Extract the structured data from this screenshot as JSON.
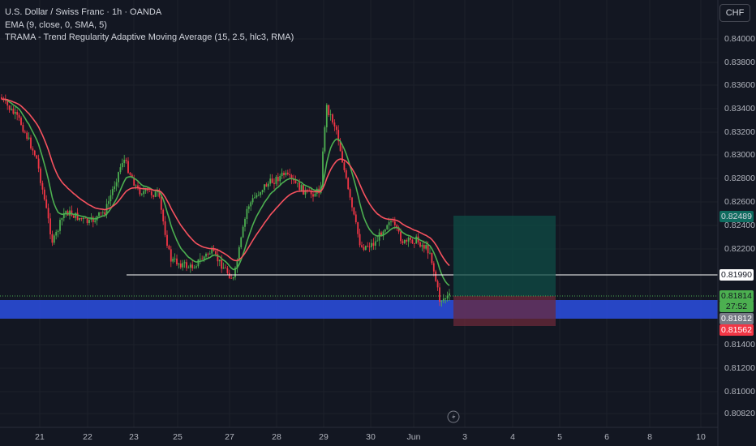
{
  "legend": {
    "title": "U.S. Dollar / Swiss Franc · 1h · OANDA",
    "ema": "EMA (9, close, 0, SMA, 5)",
    "trama": "TRAMA - Trend Regularity Adaptive Moving Average (15, 2.5, hlc3, RMA)"
  },
  "currency_button": "CHF",
  "colors": {
    "background": "#131722",
    "up": "#4caf50",
    "down": "#f23645",
    "trama": "#f7525f",
    "ema": "#4caf50",
    "zone": "#2a4bd7",
    "target": "#0f4c46",
    "stop": "#6b2a3a"
  },
  "price_tags": {
    "target": "0.82489",
    "level": "0.81990",
    "current": "0.81814",
    "countdown": "27:52",
    "entry": "0.81812",
    "stop": "0.81562"
  },
  "chart_data": {
    "type": "candlestick",
    "y_ticks": [
      "0.84000",
      "0.83800",
      "0.83600",
      "0.83400",
      "0.83200",
      "0.83000",
      "0.82800",
      "0.82600",
      "0.82400",
      "0.82200",
      "0.81400",
      "0.81200",
      "0.81000",
      "0.80820"
    ],
    "x_ticks": [
      "21",
      "22",
      "23",
      "25",
      "27",
      "28",
      "29",
      "30",
      "Jun",
      "3",
      "4",
      "5",
      "6",
      "8",
      "10"
    ],
    "horizontal_level": 0.8199,
    "demand_zone": [
      0.8169,
      0.8178
    ],
    "position": {
      "entry": 0.81812,
      "target": 0.82489,
      "stop": 0.81562
    },
    "ylim": [
      0.8075,
      0.8425
    ]
  }
}
